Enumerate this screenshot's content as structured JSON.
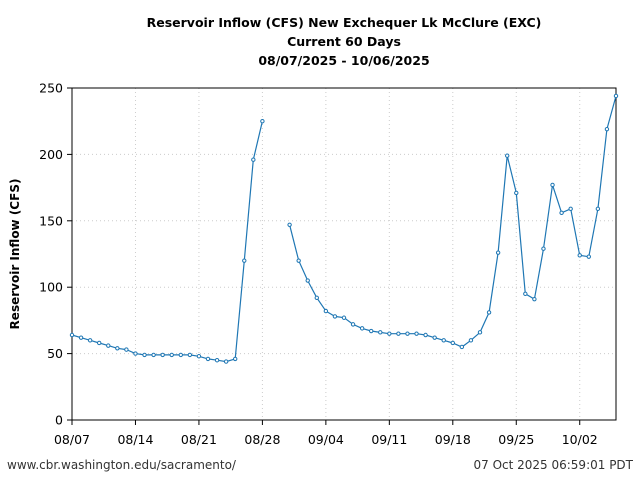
{
  "chart_data": {
    "type": "line",
    "title": "Reservoir Inflow (CFS) New Exchequer Lk McClure (EXC)",
    "subtitle": "Current 60 Days",
    "date_range": "08/07/2025 - 10/06/2025",
    "ylabel": "Reservoir Inflow (CFS)",
    "xlabel": "",
    "ylim": [
      0,
      250
    ],
    "xlim": [
      "2025-08-07",
      "2025-10-06"
    ],
    "yticks": [
      0,
      50,
      100,
      150,
      200,
      250
    ],
    "xticks": [
      {
        "date": "2025-08-07",
        "label": "08/07"
      },
      {
        "date": "2025-08-14",
        "label": "08/14"
      },
      {
        "date": "2025-08-21",
        "label": "08/21"
      },
      {
        "date": "2025-08-28",
        "label": "08/28"
      },
      {
        "date": "2025-09-04",
        "label": "09/04"
      },
      {
        "date": "2025-09-11",
        "label": "09/11"
      },
      {
        "date": "2025-09-18",
        "label": "09/18"
      },
      {
        "date": "2025-09-25",
        "label": "09/25"
      },
      {
        "date": "2025-10-02",
        "label": "10/02"
      }
    ],
    "grid": true,
    "color": "#1f77b4",
    "series": [
      {
        "points": [
          [
            "2025-08-07",
            64
          ],
          [
            "2025-08-08",
            62
          ],
          [
            "2025-08-09",
            60
          ],
          [
            "2025-08-10",
            58
          ],
          [
            "2025-08-11",
            56
          ],
          [
            "2025-08-12",
            54
          ],
          [
            "2025-08-13",
            53
          ],
          [
            "2025-08-14",
            50
          ],
          [
            "2025-08-15",
            49
          ],
          [
            "2025-08-16",
            49
          ],
          [
            "2025-08-17",
            49
          ],
          [
            "2025-08-18",
            49
          ],
          [
            "2025-08-19",
            49
          ],
          [
            "2025-08-20",
            49
          ],
          [
            "2025-08-21",
            48
          ],
          [
            "2025-08-22",
            46
          ],
          [
            "2025-08-23",
            45
          ],
          [
            "2025-08-24",
            44
          ],
          [
            "2025-08-25",
            46
          ],
          [
            "2025-08-26",
            120
          ],
          [
            "2025-08-27",
            196
          ],
          [
            "2025-08-28",
            225
          ],
          [
            "2025-08-29",
            null
          ],
          [
            "2025-08-30",
            null
          ],
          [
            "2025-08-31",
            147
          ],
          [
            "2025-09-01",
            120
          ],
          [
            "2025-09-02",
            105
          ],
          [
            "2025-09-03",
            92
          ],
          [
            "2025-09-04",
            82
          ],
          [
            "2025-09-05",
            78
          ],
          [
            "2025-09-06",
            77
          ],
          [
            "2025-09-07",
            72
          ],
          [
            "2025-09-08",
            69
          ],
          [
            "2025-09-09",
            67
          ],
          [
            "2025-09-10",
            66
          ],
          [
            "2025-09-11",
            65
          ],
          [
            "2025-09-12",
            65
          ],
          [
            "2025-09-13",
            65
          ],
          [
            "2025-09-14",
            65
          ],
          [
            "2025-09-15",
            64
          ],
          [
            "2025-09-16",
            62
          ],
          [
            "2025-09-17",
            60
          ],
          [
            "2025-09-18",
            58
          ],
          [
            "2025-09-19",
            55
          ],
          [
            "2025-09-20",
            60
          ],
          [
            "2025-09-21",
            66
          ],
          [
            "2025-09-22",
            81
          ],
          [
            "2025-09-23",
            126
          ],
          [
            "2025-09-24",
            199
          ],
          [
            "2025-09-25",
            171
          ],
          [
            "2025-09-26",
            95
          ],
          [
            "2025-09-27",
            91
          ],
          [
            "2025-09-28",
            129
          ],
          [
            "2025-09-29",
            177
          ],
          [
            "2025-09-30",
            156
          ],
          [
            "2025-10-01",
            159
          ],
          [
            "2025-10-02",
            124
          ],
          [
            "2025-10-03",
            123
          ],
          [
            "2025-10-04",
            159
          ],
          [
            "2025-10-05",
            219
          ],
          [
            "2025-10-06",
            244
          ]
        ]
      }
    ]
  },
  "footer": {
    "left": "www.cbr.washington.edu/sacramento/",
    "right": "07 Oct 2025 06:59:01 PDT"
  }
}
